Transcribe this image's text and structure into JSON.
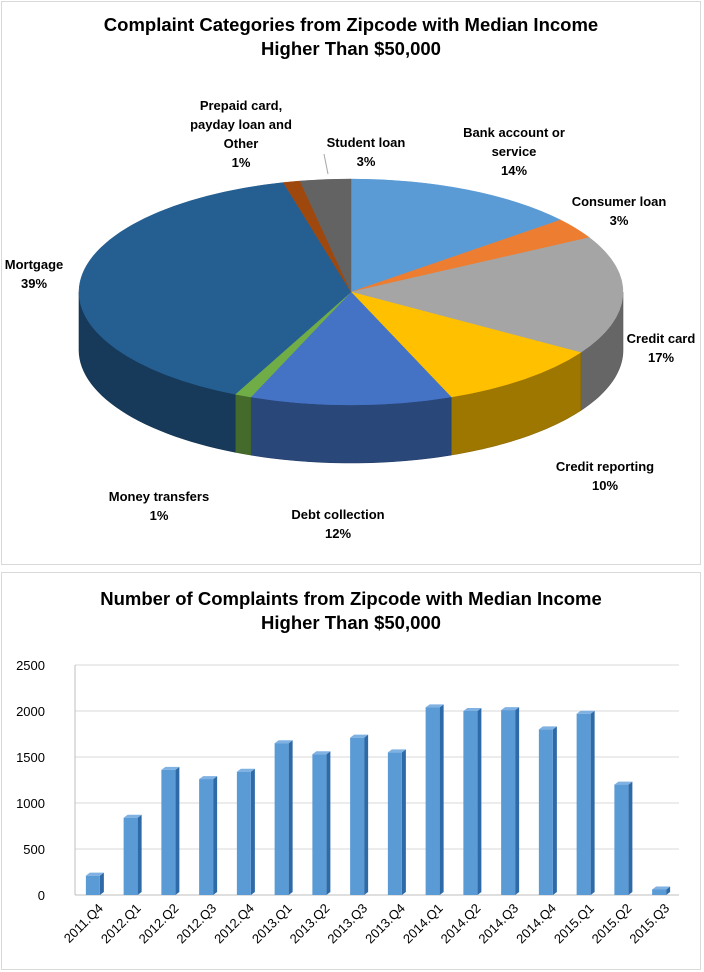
{
  "chart_data": [
    {
      "type": "pie",
      "title_line1": "Complaint Categories from Zipcode with Median Income",
      "title_line2": "Higher Than $50,000",
      "slices": [
        {
          "label_lines": [
            "Bank account or",
            "service"
          ],
          "value": 14,
          "pct": "14%",
          "color": "#5b9bd5"
        },
        {
          "label_lines": [
            "Consumer loan"
          ],
          "value": 3,
          "pct": "3%",
          "color": "#ed7d31"
        },
        {
          "label_lines": [
            "Credit card"
          ],
          "value": 17,
          "pct": "17%",
          "color": "#a5a5a5"
        },
        {
          "label_lines": [
            "Credit reporting"
          ],
          "value": 10,
          "pct": "10%",
          "color": "#ffc000"
        },
        {
          "label_lines": [
            "Debt collection"
          ],
          "value": 12,
          "pct": "12%",
          "color": "#4472c4"
        },
        {
          "label_lines": [
            "Money transfers"
          ],
          "value": 1,
          "pct": "1%",
          "color": "#70ad47"
        },
        {
          "label_lines": [
            "Mortgage"
          ],
          "value": 39,
          "pct": "39%",
          "color": "#255e91"
        },
        {
          "label_lines": [
            "Prepaid card,",
            "payday loan and",
            "Other"
          ],
          "value": 1,
          "pct": "1%",
          "color": "#9e480e"
        },
        {
          "label_lines": [
            "Student loan"
          ],
          "value": 3,
          "pct": "3%",
          "color": "#636363"
        }
      ]
    },
    {
      "type": "bar",
      "title_line1": "Number of Complaints from Zipcode with Median Income",
      "title_line2": "Higher Than $50,000",
      "categories": [
        "2011.Q4",
        "2012.Q1",
        "2012.Q2",
        "2012.Q3",
        "2012.Q4",
        "2013.Q1",
        "2013.Q2",
        "2013.Q3",
        "2013.Q4",
        "2014.Q1",
        "2014.Q2",
        "2014.Q3",
        "2014.Q4",
        "2015.Q1",
        "2015.Q2",
        "2015.Q3"
      ],
      "values": [
        210,
        840,
        1360,
        1260,
        1340,
        1650,
        1530,
        1710,
        1550,
        2040,
        2000,
        2010,
        1800,
        1970,
        1200,
        60
      ],
      "ylim": [
        0,
        2500
      ],
      "yticks": [
        "0",
        "500",
        "1000",
        "1500",
        "2000",
        "2500"
      ],
      "grid": true,
      "bar_color": "#5b9bd5"
    }
  ]
}
